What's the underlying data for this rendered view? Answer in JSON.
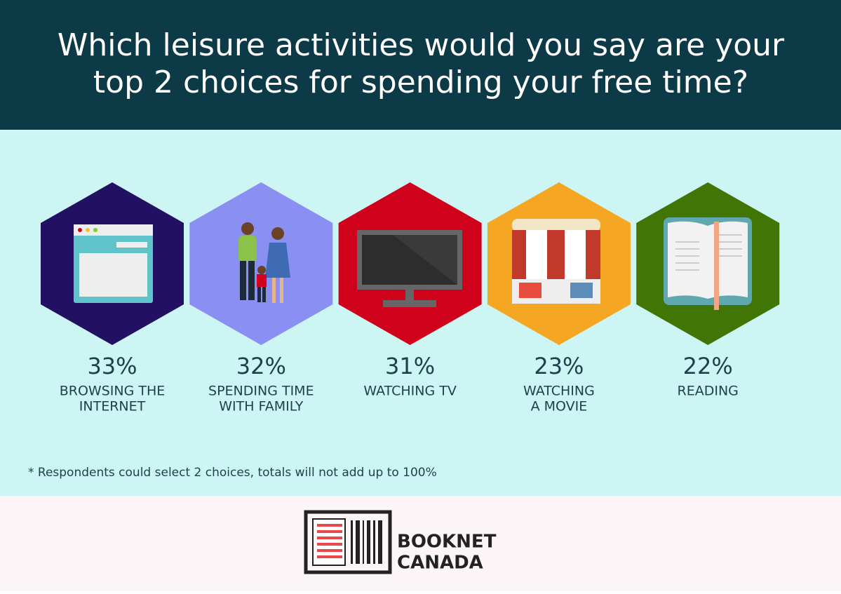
{
  "header": {
    "title": [
      "Which leisure activities would you say are your",
      "top 2 choices for spending your free time?"
    ]
  },
  "items": [
    {
      "value": "33%",
      "label": [
        "BROWSING THE",
        "INTERNET"
      ],
      "color": "#221063"
    },
    {
      "value": "32%",
      "label": [
        "SPENDING TIME",
        "WITH FAMILY"
      ],
      "color": "#8a8ff2"
    },
    {
      "value": "31%",
      "label": [
        "WATCHING TV"
      ],
      "color": "#d0021b"
    },
    {
      "value": "23%",
      "label": [
        "WATCHING",
        "A MOVIE"
      ],
      "color": "#f5a623"
    },
    {
      "value": "22%",
      "label": [
        "READING"
      ],
      "color": "#417505"
    }
  ],
  "footnote": "* Respondents could select 2 choices, totals will not add up to 100%",
  "logo": [
    "BOOKNET",
    "CANADA"
  ]
}
